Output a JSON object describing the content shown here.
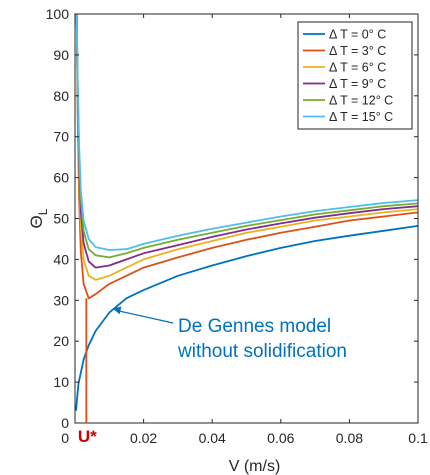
{
  "chart_data": {
    "type": "line",
    "xlabel": "V (m/s)",
    "ylabel_main": "Θ",
    "ylabel_sub": "L",
    "xlim": [
      0,
      0.1
    ],
    "ylim": [
      0,
      100
    ],
    "xticks": [
      0.02,
      0.04,
      0.06,
      0.08,
      0.1
    ],
    "xtick_labels": [
      "0.02",
      "0.04",
      "0.06",
      "0.08",
      "0.1"
    ],
    "yticks": [
      0,
      10,
      20,
      30,
      40,
      50,
      60,
      70,
      80,
      90,
      100
    ],
    "ytick_labels": [
      "0",
      "10",
      "20",
      "30",
      "40",
      "50",
      "60",
      "70",
      "80",
      "90",
      "100"
    ],
    "grid": false,
    "legend_position": "top-right",
    "series": [
      {
        "name": "Δ T = 0° C",
        "color": "#0072BD",
        "x": [
          0.0003,
          0.001,
          0.0025,
          0.004,
          0.006,
          0.01,
          0.015,
          0.02,
          0.03,
          0.04,
          0.05,
          0.06,
          0.07,
          0.08,
          0.09,
          0.1
        ],
        "y": [
          3,
          9.5,
          15.5,
          19,
          22.5,
          27,
          30.5,
          32.5,
          36,
          38.5,
          40.8,
          42.8,
          44.5,
          45.8,
          47,
          48.2
        ]
      },
      {
        "name": "Δ T = 3° C",
        "color": "#D95319",
        "x": [
          0.0005,
          0.0008,
          0.0012,
          0.0017,
          0.0025,
          0.004,
          0.006,
          0.01,
          0.015,
          0.02,
          0.03,
          0.04,
          0.05,
          0.06,
          0.07,
          0.08,
          0.09,
          0.1
        ],
        "y": [
          100,
          75,
          55,
          42,
          34,
          30.5,
          31.5,
          34,
          36,
          38,
          40.5,
          42.8,
          44.8,
          46.5,
          48,
          49.5,
          50.5,
          51.5
        ]
      },
      {
        "name": "Δ T = 6° C",
        "color": "#EDB120",
        "x": [
          0.0005,
          0.0008,
          0.0012,
          0.0017,
          0.0025,
          0.004,
          0.006,
          0.01,
          0.015,
          0.02,
          0.03,
          0.04,
          0.05,
          0.06,
          0.07,
          0.08,
          0.09,
          0.1
        ],
        "y": [
          100,
          78,
          60,
          48,
          40,
          36,
          35,
          36,
          38,
          40,
          42.5,
          44.5,
          46.5,
          48,
          49.5,
          50.5,
          51.5,
          52.3
        ]
      },
      {
        "name": "Δ T = 9° C",
        "color": "#7E2F8E",
        "x": [
          0.0005,
          0.0008,
          0.0012,
          0.0017,
          0.0025,
          0.004,
          0.006,
          0.01,
          0.015,
          0.02,
          0.03,
          0.04,
          0.05,
          0.06,
          0.07,
          0.08,
          0.09,
          0.1
        ],
        "y": [
          100,
          80,
          63,
          52,
          44,
          39.5,
          38,
          38.5,
          40,
          41.5,
          43.5,
          45.5,
          47.3,
          48.8,
          50.2,
          51.3,
          52.3,
          53
        ]
      },
      {
        "name": "Δ T = 12° C",
        "color": "#77AC30",
        "x": [
          0.0005,
          0.0008,
          0.0012,
          0.0017,
          0.0025,
          0.004,
          0.006,
          0.01,
          0.015,
          0.02,
          0.03,
          0.04,
          0.05,
          0.06,
          0.07,
          0.08,
          0.09,
          0.1
        ],
        "y": [
          100,
          82,
          66,
          55,
          47,
          42.5,
          41,
          40.5,
          41.5,
          42.8,
          44.8,
          46.5,
          48.2,
          49.6,
          51,
          52,
          53,
          53.7
        ]
      },
      {
        "name": "Δ T = 15° C",
        "color": "#4DBEEE",
        "x": [
          0.0005,
          0.0008,
          0.0012,
          0.0017,
          0.0025,
          0.004,
          0.006,
          0.01,
          0.015,
          0.02,
          0.03,
          0.04,
          0.05,
          0.06,
          0.07,
          0.08,
          0.09,
          0.1
        ],
        "y": [
          100,
          84,
          68,
          57,
          49.5,
          45,
          43,
          42.3,
          42.5,
          43.8,
          45.8,
          47.5,
          49,
          50.5,
          51.8,
          52.8,
          53.8,
          54.5
        ]
      }
    ],
    "marker": {
      "label": "U*",
      "x": 0.0033,
      "y": 30.5,
      "color": "#D95319",
      "label_color": "#D00000"
    },
    "annotation": {
      "lines": [
        "De Gennes model",
        "without solidification"
      ],
      "color": "#0072BD",
      "arrow_to": {
        "x": 0.011,
        "y": 28
      }
    }
  }
}
